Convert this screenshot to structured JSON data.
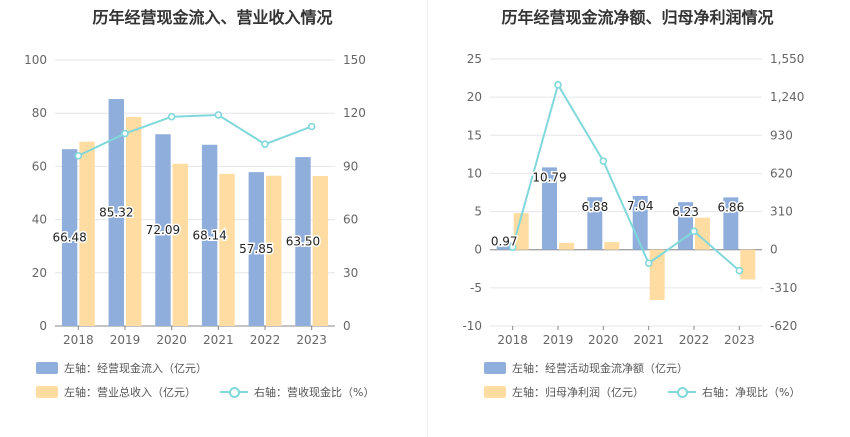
{
  "colors": {
    "bar_primary": "#8faedc",
    "bar_secondary": "#ffdca1",
    "line": "#80d8db",
    "grid": "#e6e6ea",
    "text": "#666666"
  },
  "chart_data": [
    {
      "type": "bar",
      "title": "历年经营现金流入、营业收入情况",
      "categories": [
        "2018",
        "2019",
        "2020",
        "2021",
        "2022",
        "2023"
      ],
      "ylim_left": [
        0,
        100
      ],
      "yticks_left": [
        0,
        20,
        40,
        60,
        80,
        100
      ],
      "ylim_right": [
        0,
        150
      ],
      "yticks_right": [
        0,
        30,
        60,
        90,
        120,
        150
      ],
      "series": [
        {
          "name": "左轴：经营现金流入（亿元）",
          "axis": "left",
          "kind": "bar",
          "values": [
            66.48,
            85.32,
            72.09,
            68.14,
            57.85,
            63.5
          ],
          "labels": [
            "66.48",
            "85.32",
            "72.09",
            "68.14",
            "57.85",
            "63.50"
          ]
        },
        {
          "name": "左轴：营业总收入（亿元）",
          "axis": "left",
          "kind": "bar",
          "values": [
            69.3,
            78.6,
            61.0,
            57.2,
            56.5,
            56.4
          ]
        },
        {
          "name": "右轴：营收现金比（%）",
          "axis": "right",
          "kind": "line",
          "values": [
            96,
            108.5,
            118,
            119,
            102.5,
            112.5
          ]
        }
      ]
    },
    {
      "type": "bar",
      "title": "历年经营现金流净额、归母净利润情况",
      "categories": [
        "2018",
        "2019",
        "2020",
        "2021",
        "2022",
        "2023"
      ],
      "ylim_left": [
        -10,
        25
      ],
      "yticks_left": [
        -10,
        -5,
        0,
        5,
        10,
        15,
        20,
        25
      ],
      "ylim_right": [
        -620,
        1550
      ],
      "yticks_right": [
        -620,
        -310,
        0,
        310,
        620,
        930,
        1240,
        1550
      ],
      "right_tick_labels": [
        "-620",
        "-310",
        "0",
        "310",
        "620",
        "930",
        "1,240",
        "1,550"
      ],
      "series": [
        {
          "name": "左轴：经营活动现金流净额（亿元）",
          "axis": "left",
          "kind": "bar",
          "values": [
            0.97,
            10.79,
            6.88,
            7.04,
            6.23,
            6.86
          ],
          "labels": [
            "0.97",
            "10.79",
            "6.88",
            "7.04",
            "6.23",
            "6.86"
          ]
        },
        {
          "name": "左轴：归母净利润（亿元）",
          "axis": "left",
          "kind": "bar",
          "values": [
            4.8,
            0.9,
            1.0,
            -6.6,
            4.2,
            -3.9
          ]
        },
        {
          "name": "右轴：净现比（%）",
          "axis": "right",
          "kind": "line",
          "values": [
            20,
            1340,
            720,
            -110,
            150,
            -170
          ]
        }
      ]
    }
  ]
}
